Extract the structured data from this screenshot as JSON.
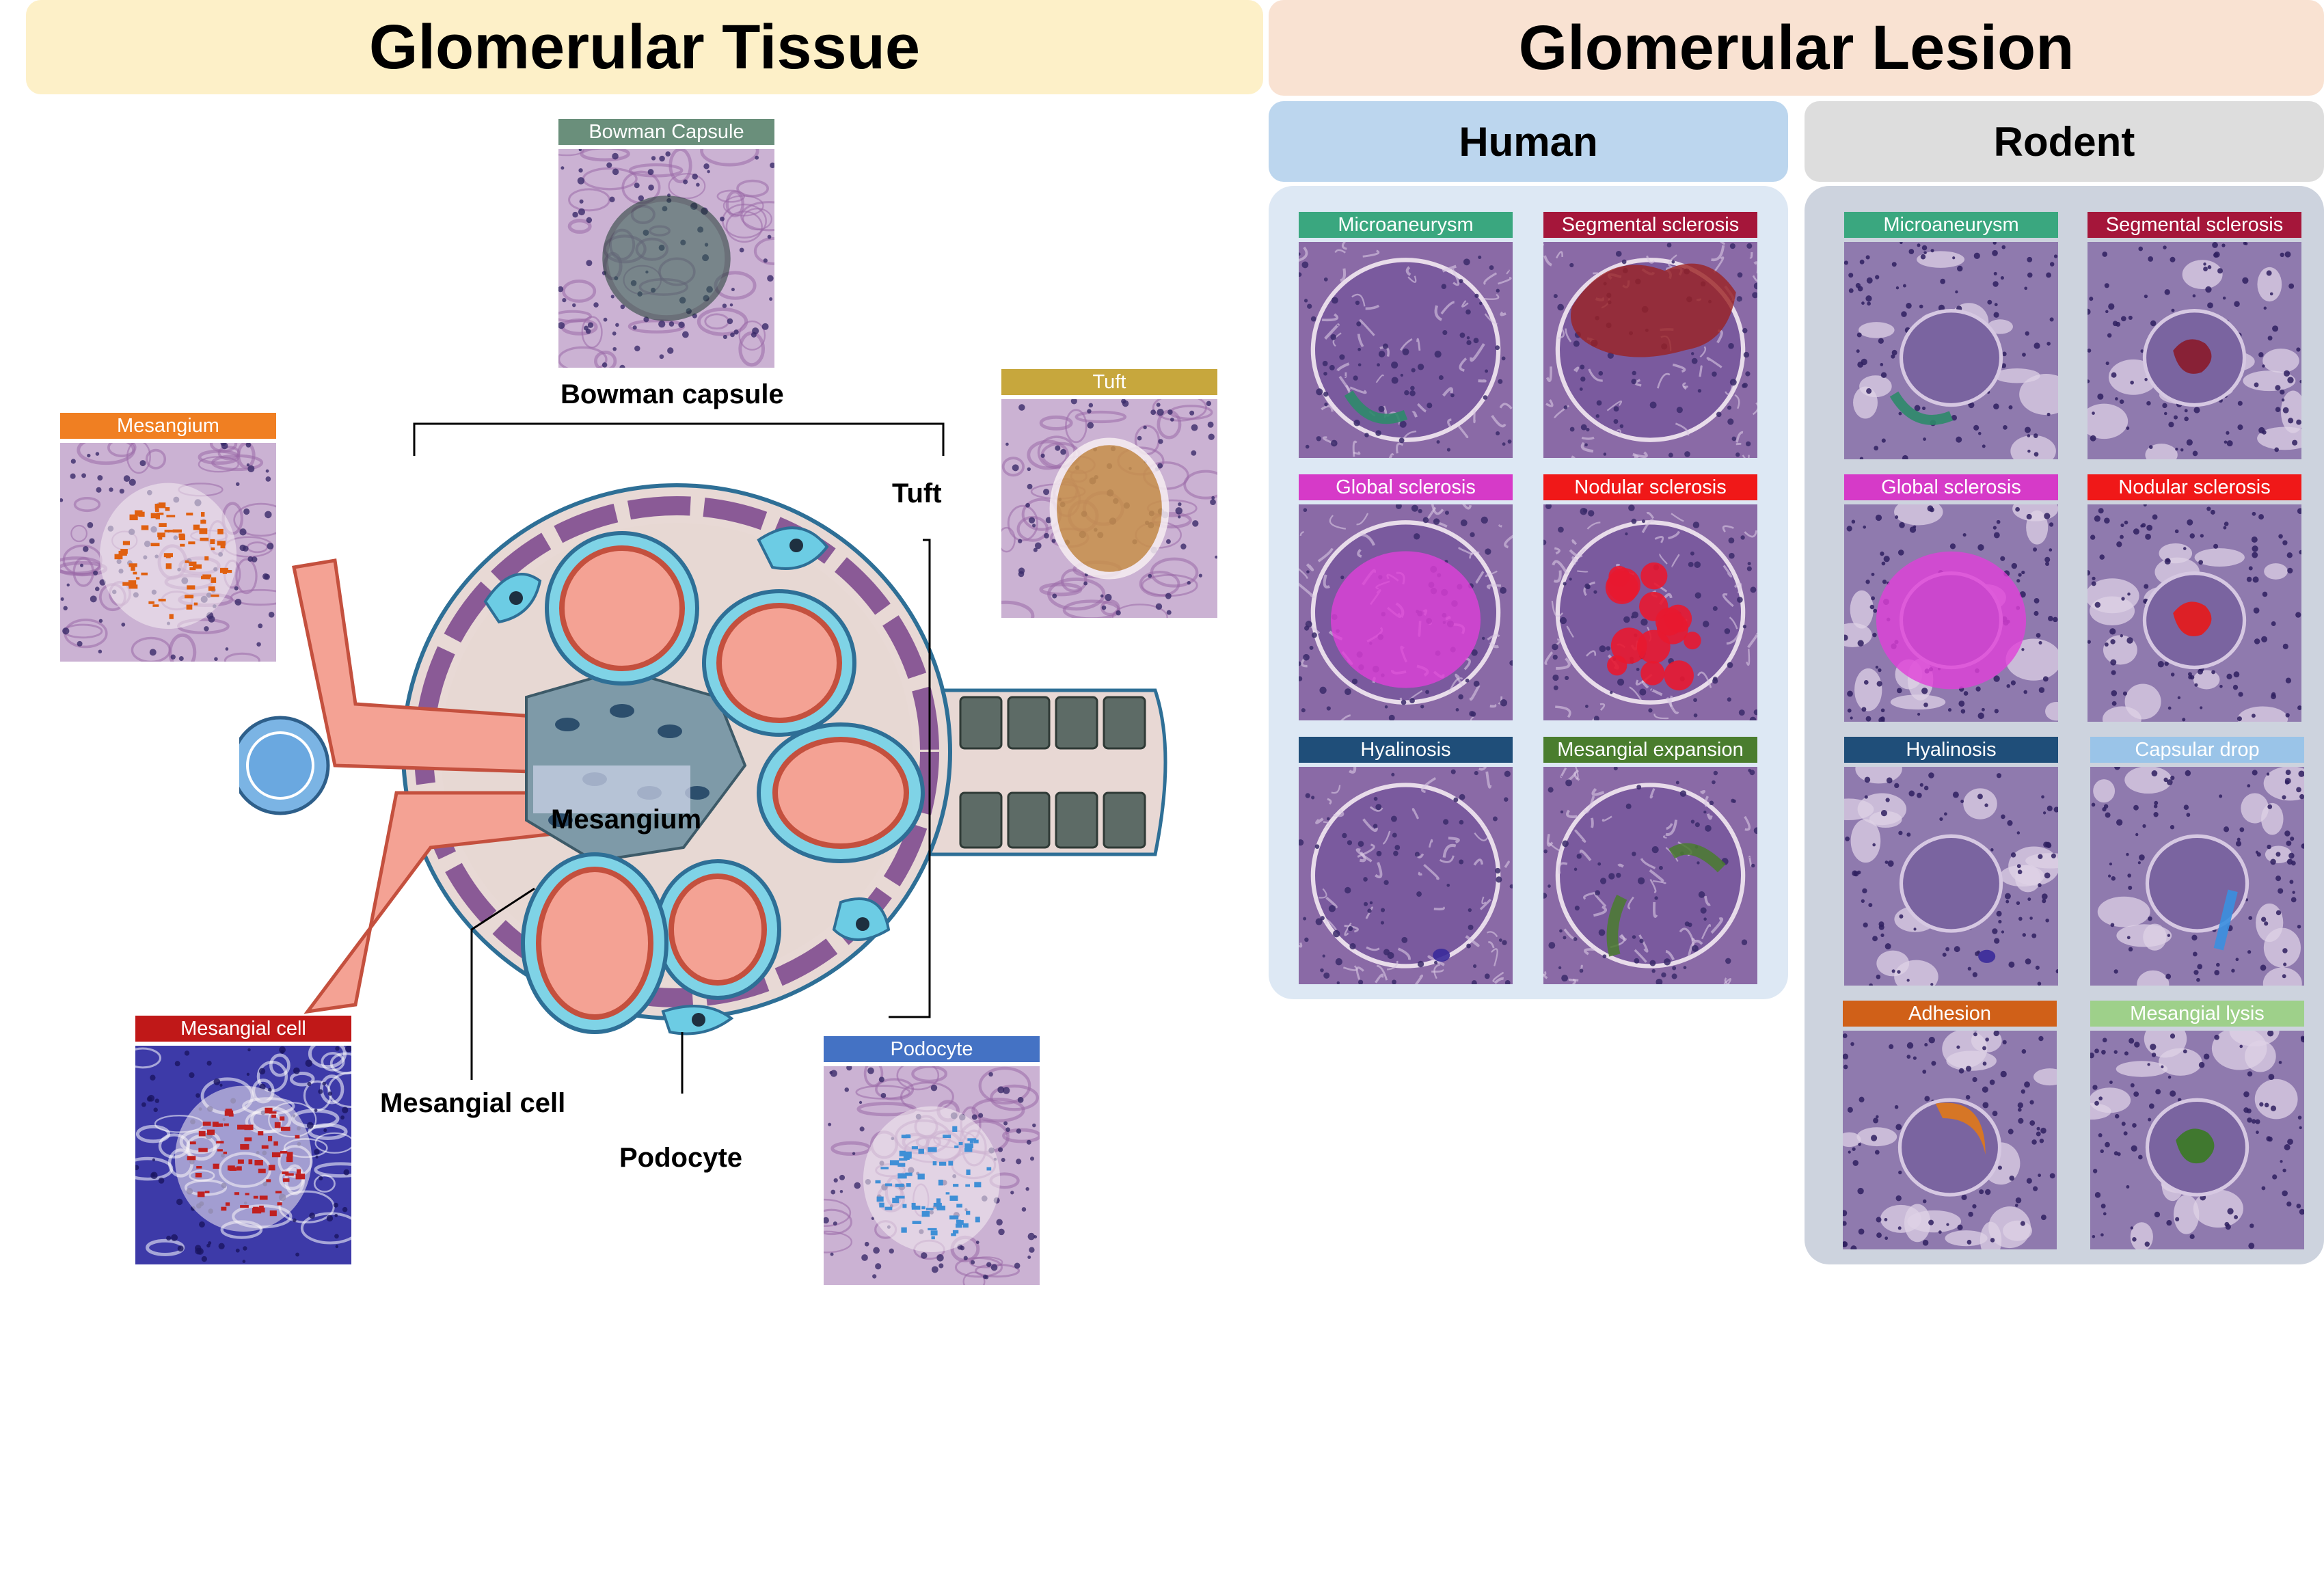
{
  "left_header": {
    "title": "Glomerular Tissue",
    "bg": "#fdf0c8"
  },
  "right_header": {
    "title": "Glomerular Lesion",
    "bg": "#f9e2d2"
  },
  "human_header": {
    "title": "Human",
    "bg": "#bcd6ee"
  },
  "rodent_header": {
    "title": "Rodent",
    "bg": "#dddddd"
  },
  "human_panel_bg": "#dde8f4",
  "rodent_panel_bg": "#cdd3de",
  "tissue_tiles": [
    {
      "label": "Bowman Capsule",
      "color": "#6a8f7b",
      "overlay": "ring",
      "overlay_color": "#35624f",
      "stain": "pink"
    },
    {
      "label": "Mesangium",
      "color": "#f07f22",
      "overlay": "speckle",
      "overlay_color": "#e06010",
      "stain": "pink"
    },
    {
      "label": "Tuft",
      "color": "#c7a73d",
      "overlay": "blob",
      "overlay_color": "#c8904a",
      "stain": "pink"
    },
    {
      "label": "Mesangial cell",
      "color": "#c01818",
      "overlay": "speckle",
      "overlay_color": "#c02020",
      "stain": "blue"
    },
    {
      "label": "Podocyte",
      "color": "#4472c4",
      "overlay": "speckle",
      "overlay_color": "#3f8fd6",
      "stain": "pink"
    }
  ],
  "diagram_labels": {
    "bowman_capsule": "Bowman capsule",
    "tuft": "Tuft",
    "mesangium": "Mesangium",
    "mesangial_cell": "Mesangial cell",
    "podocyte": "Podocyte"
  },
  "human_tiles": [
    {
      "label": "Microaneurysm",
      "color": "#3aa77f",
      "overlay": "arc",
      "overlay_color": "#2e8a6a"
    },
    {
      "label": "Segmental sclerosis",
      "color": "#a5163a",
      "overlay": "bigblob",
      "overlay_color": "#9b2222"
    },
    {
      "label": "Global sclerosis",
      "color": "#d63ac8",
      "overlay": "disc",
      "overlay_color": "#e040d8"
    },
    {
      "label": "Nodular sclerosis",
      "color": "#f01818",
      "overlay": "clusters",
      "overlay_color": "#e81830"
    },
    {
      "label": "Hyalinosis",
      "color": "#1f4e79",
      "overlay": "dot",
      "overlay_color": "#3a2a9a"
    },
    {
      "label": "Mesangial expansion",
      "color": "#4a7d2e",
      "overlay": "squiggle",
      "overlay_color": "#4a7d2e"
    }
  ],
  "rodent_tiles": [
    {
      "label": "Microaneurysm",
      "color": "#3aa77f",
      "overlay": "arc",
      "overlay_color": "#2e8a6a"
    },
    {
      "label": "Segmental sclerosis",
      "color": "#a5163a",
      "overlay": "smallblob",
      "overlay_color": "#8a1a2a"
    },
    {
      "label": "Global sclerosis",
      "color": "#d63ac8",
      "overlay": "disc",
      "overlay_color": "#e040d8"
    },
    {
      "label": "Nodular sclerosis",
      "color": "#f01818",
      "overlay": "smallblob",
      "overlay_color": "#e81818"
    },
    {
      "label": "Hyalinosis",
      "color": "#1f4e79",
      "overlay": "dot",
      "overlay_color": "#3a2a9a"
    },
    {
      "label": "Capsular drop",
      "color": "#9ac4e8",
      "overlay": "streak",
      "overlay_color": "#3a90e0"
    },
    {
      "label": "Adhesion",
      "color": "#d06018",
      "overlay": "crescent",
      "overlay_color": "#e07818"
    },
    {
      "label": "Mesangial lysis",
      "color": "#9ed08a",
      "overlay": "smallblob",
      "overlay_color": "#3a7a22"
    }
  ]
}
